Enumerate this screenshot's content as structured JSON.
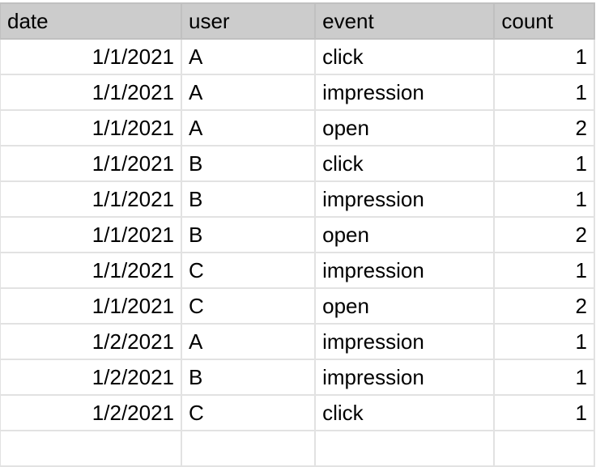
{
  "sheet": {
    "columns": [
      "date",
      "user",
      "event",
      "count"
    ],
    "rows": [
      [
        "1/1/2021",
        "A",
        "click",
        "1"
      ],
      [
        "1/1/2021",
        "A",
        "impression",
        "1"
      ],
      [
        "1/1/2021",
        "A",
        "open",
        "2"
      ],
      [
        "1/1/2021",
        "B",
        "click",
        "1"
      ],
      [
        "1/1/2021",
        "B",
        "impression",
        "1"
      ],
      [
        "1/1/2021",
        "B",
        "open",
        "2"
      ],
      [
        "1/1/2021",
        "C",
        "impression",
        "1"
      ],
      [
        "1/1/2021",
        "C",
        "open",
        "2"
      ],
      [
        "1/2/2021",
        "A",
        "impression",
        "1"
      ],
      [
        "1/2/2021",
        "B",
        "impression",
        "1"
      ],
      [
        "1/2/2021",
        "C",
        "click",
        "1"
      ]
    ],
    "header_color": "#cccccc",
    "grid_color": "#e2e2e2"
  }
}
